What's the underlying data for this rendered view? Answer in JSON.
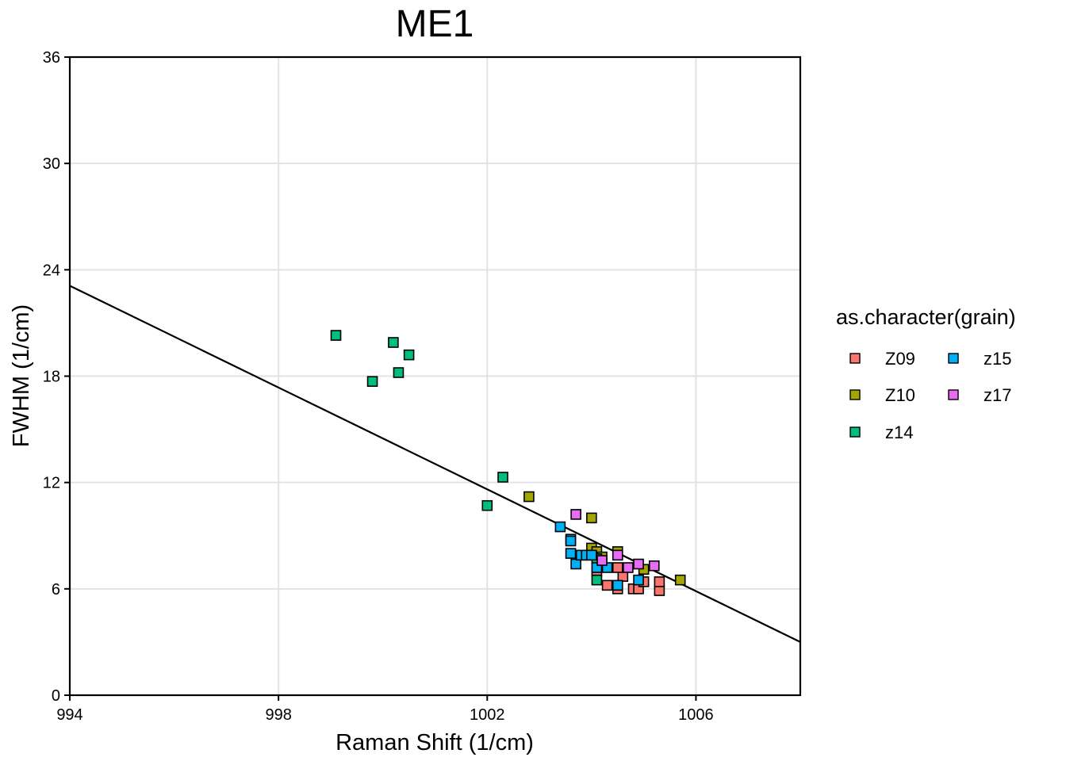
{
  "chart_data": {
    "type": "scatter",
    "title": "ME1",
    "xlabel": "Raman Shift (1/cm)",
    "ylabel": "FWHM (1/cm)",
    "xlim": [
      994,
      1008
    ],
    "ylim": [
      0,
      36
    ],
    "x_ticks": [
      994,
      998,
      1002,
      1006
    ],
    "x_tick_labels": [
      "994",
      "998",
      "1002",
      "1006"
    ],
    "y_ticks": [
      0,
      6,
      12,
      18,
      24,
      30,
      36
    ],
    "y_tick_labels": [
      "0",
      "6",
      "12",
      "18",
      "24",
      "30",
      "36"
    ],
    "grid": true,
    "legend": {
      "title": "as.character(grain)",
      "placement": "right"
    },
    "trend_line": {
      "x": [
        994,
        1008
      ],
      "y": [
        23.1,
        3.0
      ]
    },
    "series": [
      {
        "name": "Z09",
        "color": "#F8766D",
        "x": [
          1004.3,
          1004.5,
          1004.6,
          1004.8,
          1004.9,
          1005.0,
          1005.3,
          1005.3,
          1004.5,
          1004.1
        ],
        "y": [
          6.2,
          6.0,
          6.7,
          6.0,
          6.0,
          6.4,
          5.9,
          6.4,
          7.2,
          7.0
        ]
      },
      {
        "name": "Z10",
        "color": "#A3A500",
        "x": [
          1002.8,
          1004.0,
          1004.0,
          1004.1,
          1004.5,
          1005.0,
          1005.7,
          1004.2
        ],
        "y": [
          11.2,
          10.0,
          8.3,
          8.1,
          8.1,
          7.1,
          6.5,
          7.8
        ]
      },
      {
        "name": "z14",
        "color": "#00BF7D",
        "x": [
          999.1,
          999.8,
          1000.2,
          1000.3,
          1000.5,
          1002.0,
          1002.3,
          1004.1,
          1004.1
        ],
        "y": [
          20.3,
          17.7,
          19.9,
          18.2,
          19.2,
          10.7,
          12.3,
          6.5,
          7.7
        ]
      },
      {
        "name": "z15",
        "color": "#00B0F6",
        "x": [
          1003.4,
          1003.6,
          1003.6,
          1003.6,
          1003.7,
          1003.8,
          1003.9,
          1004.0,
          1004.1,
          1004.3,
          1004.5,
          1004.9
        ],
        "y": [
          9.5,
          8.8,
          8.7,
          8.0,
          7.4,
          7.9,
          7.9,
          7.9,
          7.2,
          7.2,
          6.2,
          6.5
        ]
      },
      {
        "name": "z17",
        "color": "#E76BF3",
        "x": [
          1003.7,
          1004.2,
          1004.5,
          1004.7,
          1004.9,
          1005.2
        ],
        "y": [
          10.2,
          7.6,
          7.9,
          7.2,
          7.4,
          7.3
        ]
      }
    ]
  }
}
